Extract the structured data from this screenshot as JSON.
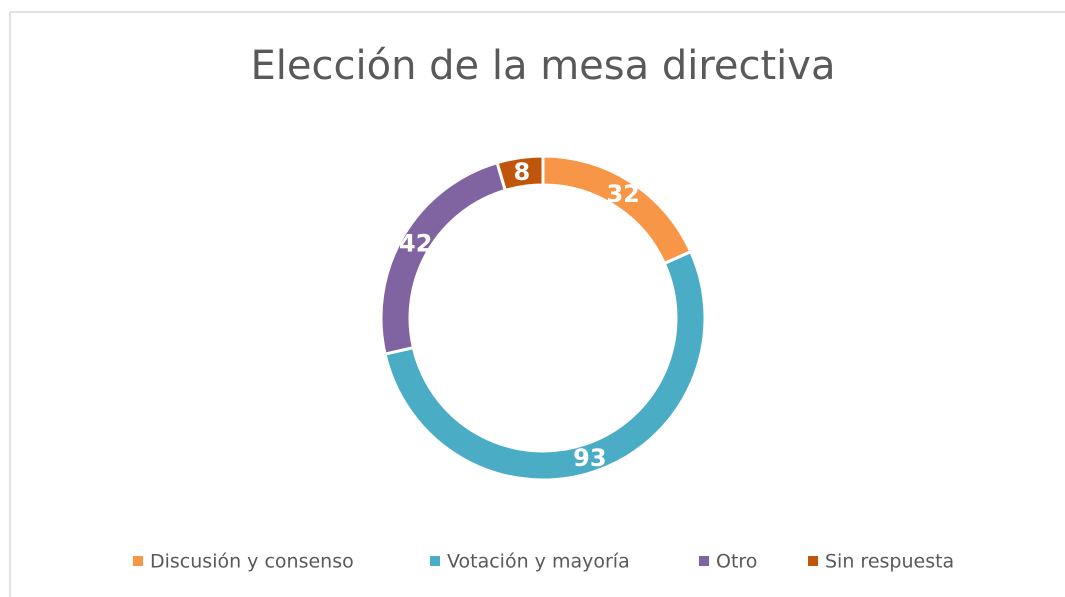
{
  "chart_data": {
    "type": "doughnut",
    "title": "Elección de la mesa directiva",
    "categories": [
      "Discusión y consenso",
      "Votación y mayoría",
      "Otro",
      "Sin respuesta"
    ],
    "values": [
      32,
      93,
      42,
      8
    ],
    "colors": [
      "#f79646",
      "#4bacc6",
      "#8064a2",
      "#c0560c"
    ],
    "legend": "bottom"
  }
}
